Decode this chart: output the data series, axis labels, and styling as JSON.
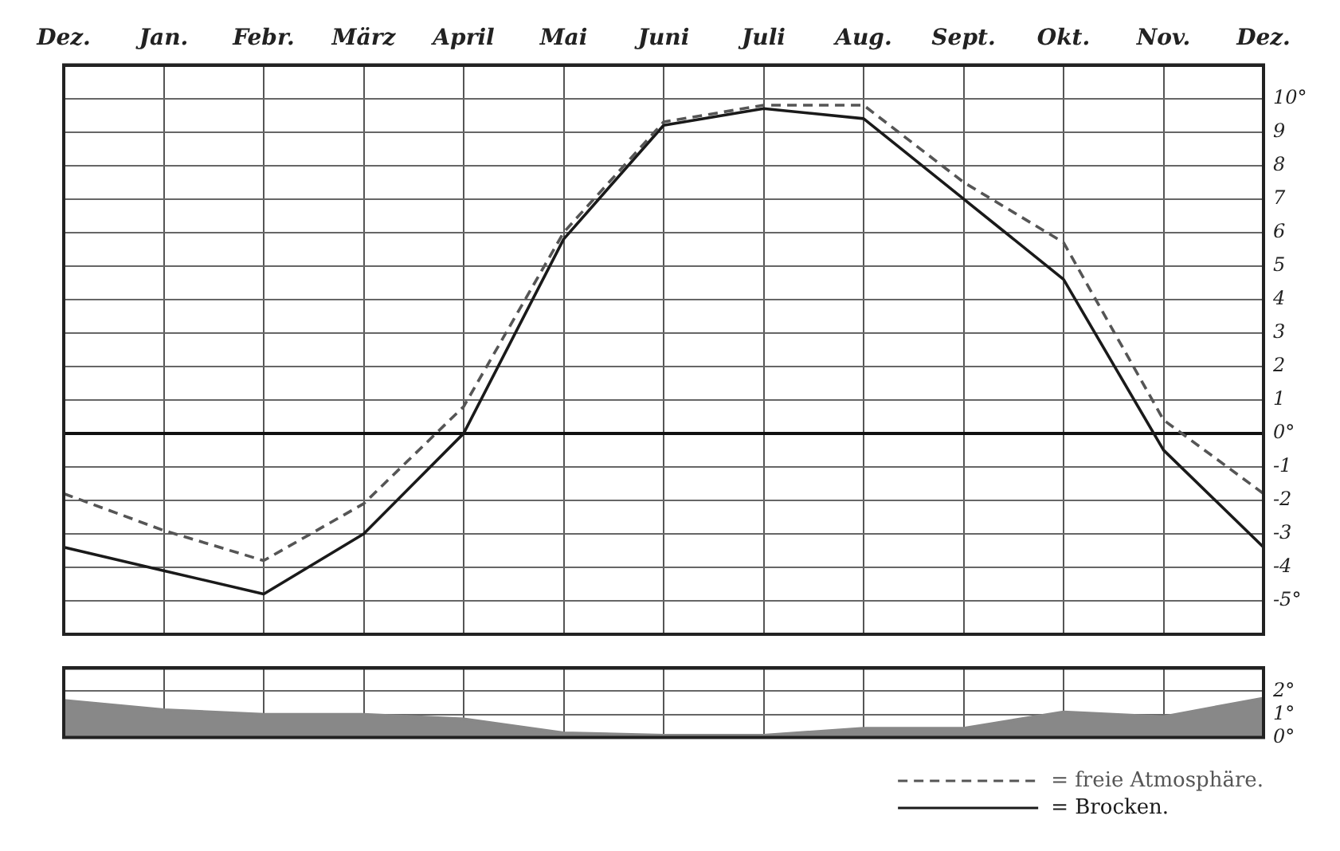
{
  "chart_data": [
    {
      "type": "line",
      "categories": [
        "Dez.",
        "Jan.",
        "Febr.",
        "März",
        "April",
        "Mai",
        "Juni",
        "Juli",
        "Aug.",
        "Sept.",
        "Okt.",
        "Nov.",
        "Dez."
      ],
      "series": [
        {
          "name": "= freie Atmosphäre.",
          "color": "#555555",
          "line_style": "dashed",
          "values": [
            -1.8,
            -2.9,
            -3.8,
            -2.1,
            0.8,
            6.0,
            9.3,
            9.8,
            9.8,
            7.5,
            5.7,
            0.4,
            -1.8
          ]
        },
        {
          "name": "= Brocken.",
          "color": "#1a1a1a",
          "line_style": "solid",
          "values": [
            -3.4,
            -4.1,
            -4.8,
            -3.0,
            0.0,
            5.8,
            9.2,
            9.7,
            9.4,
            7.0,
            4.6,
            -0.5,
            -3.4
          ]
        }
      ],
      "ylim": [
        -6,
        11
      ],
      "yticks": [
        {
          "value": -5,
          "label": "-5°"
        },
        -4,
        -3,
        -2,
        -1,
        {
          "value": 0,
          "label": "0°"
        },
        1,
        2,
        3,
        4,
        5,
        6,
        7,
        8,
        9,
        {
          "value": 10,
          "label": "10°"
        }
      ],
      "grid": true,
      "marker": "none",
      "legend": "bottom right"
    },
    {
      "type": "area",
      "categories": [
        null,
        null,
        null,
        null,
        null,
        null,
        null,
        null,
        null,
        null,
        null,
        null,
        null
      ],
      "series": [
        {
          "color": "#888888",
          "values": [
            1.6,
            1.2,
            1.0,
            1.0,
            0.8,
            0.2,
            0.1,
            0.1,
            0.4,
            0.4,
            1.1,
            0.9,
            1.7
          ]
        }
      ],
      "ylim": [
        0,
        3
      ],
      "yticks": [
        {
          "value": 0,
          "label": "0°"
        },
        {
          "value": 1,
          "label": "1°"
        },
        {
          "value": 2,
          "label": "2°"
        }
      ],
      "grid": true,
      "marker": "none",
      "tick_labels": "y"
    }
  ]
}
